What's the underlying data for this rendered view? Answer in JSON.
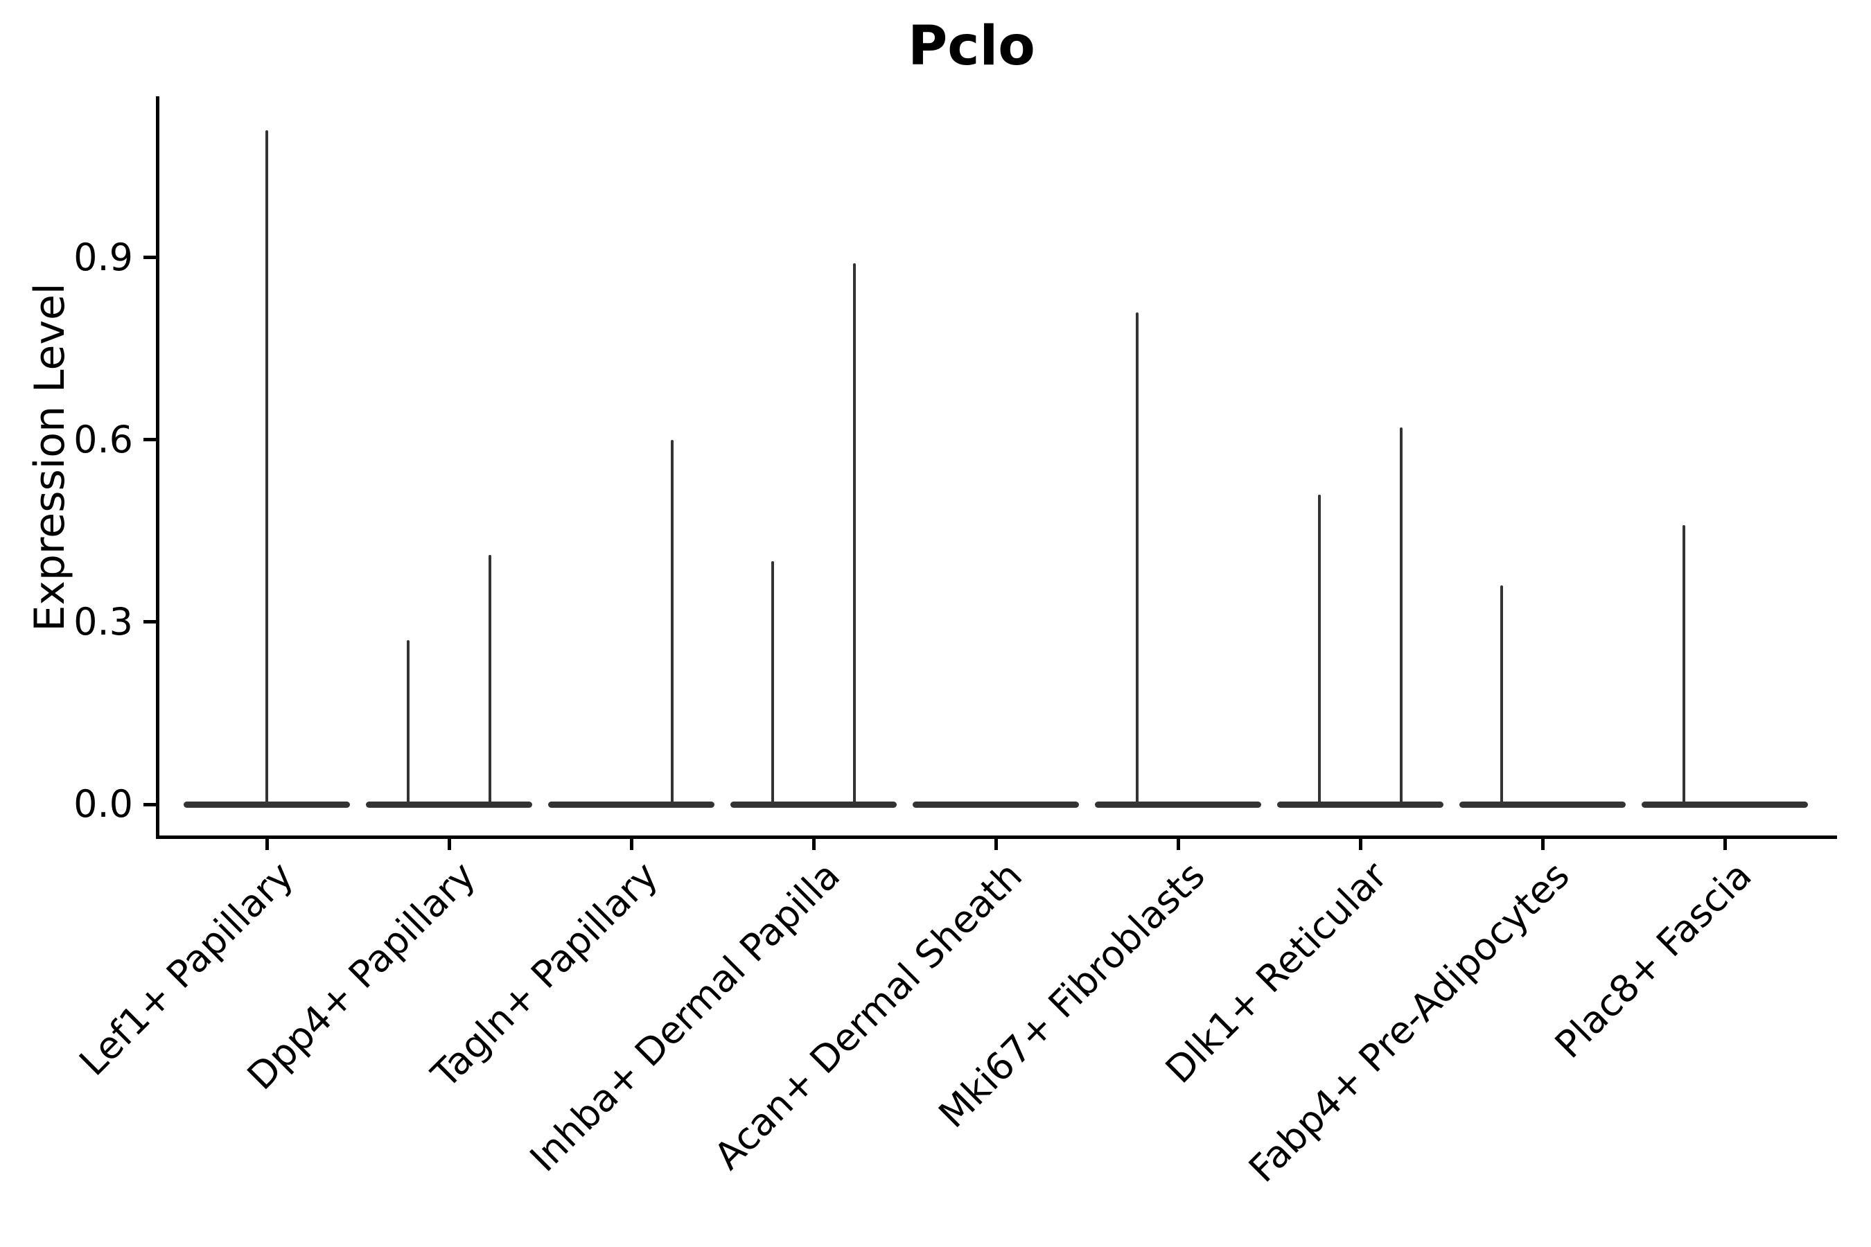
{
  "figure": {
    "background": "#ffffff"
  },
  "chart_data": {
    "type": "violin",
    "title": "Pclo",
    "ylabel": "Expression Level",
    "xlabel": "",
    "grid": false,
    "legend": "none",
    "axis_color": "#000000",
    "violin_color": "#333333",
    "ylim": [
      -0.05,
      1.19
    ],
    "yticks": [
      {
        "value": 0.0,
        "label": "0.0"
      },
      {
        "value": 0.3,
        "label": "0.3"
      },
      {
        "value": 0.6,
        "label": "0.6"
      },
      {
        "value": 0.9,
        "label": "0.9"
      }
    ],
    "description": "Violin plot of Pclo expression; each cell type shows a flat violin body at 0 with thin density spikes reaching the maximum expression values.",
    "categories": [
      {
        "label": "Lef1+ Papillary",
        "base_at_zero": true,
        "spikes": [
          {
            "pos": "center",
            "value": 1.11
          }
        ]
      },
      {
        "label": "Dpp4+ Papillary",
        "base_at_zero": true,
        "spikes": [
          {
            "pos": "left",
            "value": 0.27
          },
          {
            "pos": "right",
            "value": 0.41
          }
        ]
      },
      {
        "label": "Tagln+ Papillary",
        "base_at_zero": true,
        "spikes": [
          {
            "pos": "right",
            "value": 0.6
          }
        ]
      },
      {
        "label": "Inhba+ Dermal Papilla",
        "base_at_zero": true,
        "spikes": [
          {
            "pos": "left",
            "value": 0.4
          },
          {
            "pos": "right",
            "value": 0.89
          }
        ]
      },
      {
        "label": "Acan+ Dermal Sheath",
        "base_at_zero": true,
        "spikes": []
      },
      {
        "label": "Mki67+ Fibroblasts",
        "base_at_zero": true,
        "spikes": [
          {
            "pos": "left",
            "value": 0.81
          }
        ]
      },
      {
        "label": "Dlk1+ Reticular",
        "base_at_zero": true,
        "spikes": [
          {
            "pos": "left",
            "value": 0.51
          },
          {
            "pos": "right",
            "value": 0.62
          }
        ]
      },
      {
        "label": "Fabp4+ Pre-Adipocytes",
        "base_at_zero": true,
        "spikes": [
          {
            "pos": "left",
            "value": 0.36
          }
        ]
      },
      {
        "label": "Plac8+ Fascia",
        "base_at_zero": true,
        "spikes": [
          {
            "pos": "left",
            "value": 0.46
          }
        ]
      }
    ]
  }
}
